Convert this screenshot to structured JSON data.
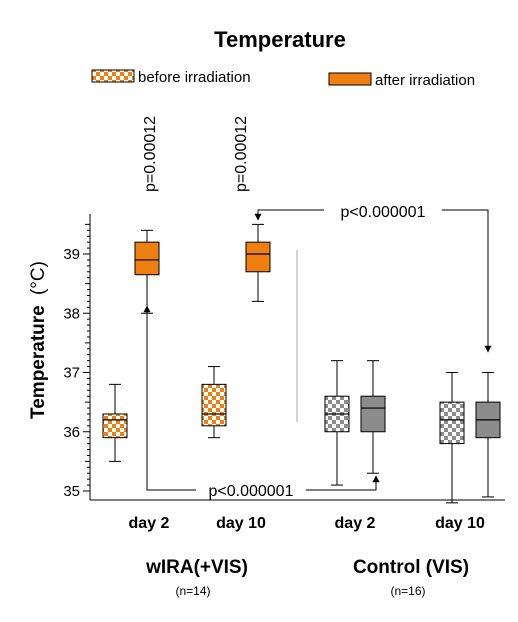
{
  "chart_data": {
    "type": "box",
    "title": "Temperature",
    "ylabel": "Temperature",
    "yunit": "(°C)",
    "ylim": [
      34.8,
      39.9
    ],
    "yticks": [
      35,
      36,
      37,
      38,
      39
    ],
    "legend": {
      "before": "before irradiation",
      "after": "after irradiation"
    },
    "colors": {
      "wira": "#f07f12",
      "control": "#8c8c8c",
      "checker_light": "#ffffff",
      "axis": "#000000",
      "divider": "#aaaaaa"
    },
    "groups": [
      {
        "name": "wIRA(+VIS)",
        "n": "(n=14)",
        "color_key": "wira",
        "categories": [
          "day 2",
          "day 10"
        ]
      },
      {
        "name": "Control (VIS)",
        "n": "(n=16)",
        "color_key": "control",
        "categories": [
          "day 2",
          "day 10"
        ]
      }
    ],
    "boxes": [
      {
        "group": 0,
        "category": "day 2",
        "phase": "before",
        "min": 35.5,
        "q1": 35.9,
        "median": 36.2,
        "q3": 36.3,
        "max": 36.8
      },
      {
        "group": 0,
        "category": "day 2",
        "phase": "after",
        "min": 38.0,
        "q1": 38.65,
        "median": 38.9,
        "q3": 39.2,
        "max": 39.4
      },
      {
        "group": 0,
        "category": "day 10",
        "phase": "before",
        "min": 35.9,
        "q1": 36.1,
        "median": 36.3,
        "q3": 36.8,
        "max": 37.1
      },
      {
        "group": 0,
        "category": "day 10",
        "phase": "after",
        "min": 38.2,
        "q1": 38.7,
        "median": 39.0,
        "q3": 39.2,
        "max": 39.5
      },
      {
        "group": 1,
        "category": "day 2",
        "phase": "before",
        "min": 35.1,
        "q1": 36.0,
        "median": 36.3,
        "q3": 36.6,
        "max": 37.2
      },
      {
        "group": 1,
        "category": "day 2",
        "phase": "after",
        "min": 35.3,
        "q1": 36.0,
        "median": 36.4,
        "q3": 36.6,
        "max": 37.2
      },
      {
        "group": 1,
        "category": "day 10",
        "phase": "before",
        "min": 34.8,
        "q1": 35.8,
        "median": 36.2,
        "q3": 36.5,
        "max": 37.0
      },
      {
        "group": 1,
        "category": "day 10",
        "phase": "after",
        "min": 34.9,
        "q1": 35.9,
        "median": 36.2,
        "q3": 36.5,
        "max": 37.0
      }
    ],
    "pvalues": {
      "wira_day2": "p=0.00012",
      "wira_day10": "p=0.00012",
      "bottom": "p<0.000001",
      "top": "p<0.000001"
    }
  }
}
